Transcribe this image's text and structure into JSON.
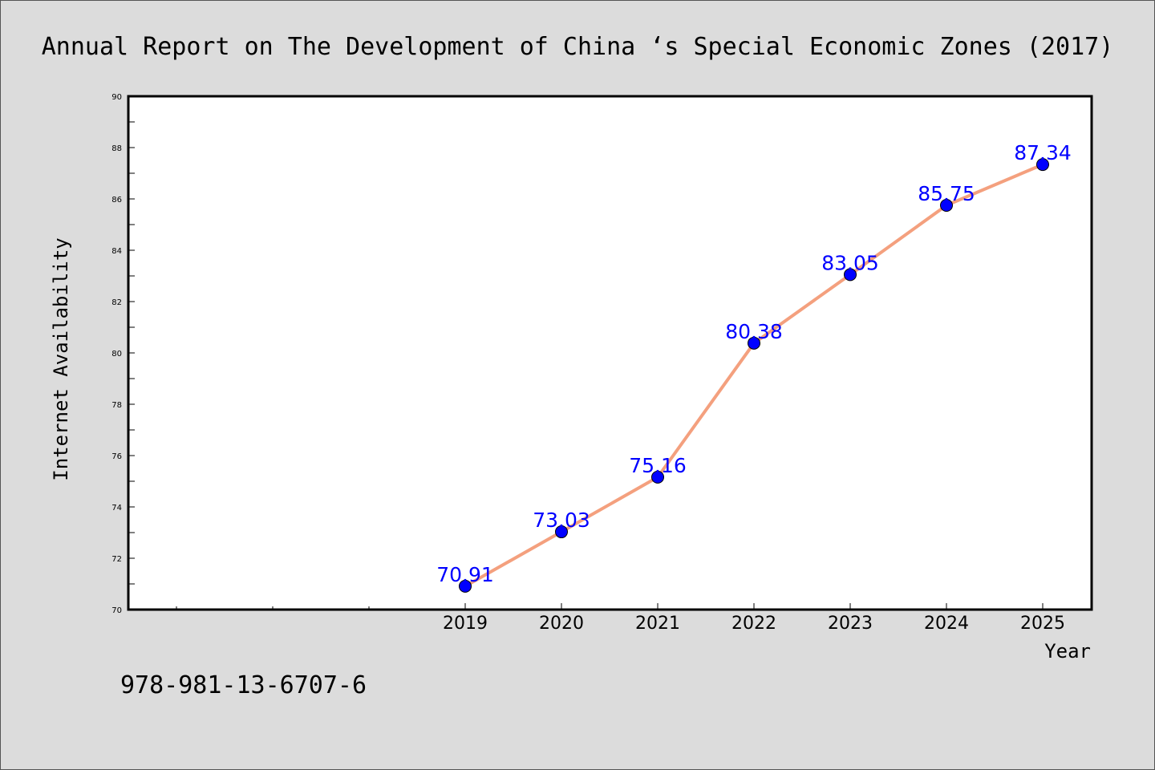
{
  "chart_data": {
    "type": "line",
    "title": "Annual Report on The Development of China ‘s Special Economic Zones (2017)",
    "xlabel": "Year",
    "ylabel": "Internet Availability",
    "x": [
      "2019",
      "2020",
      "2021",
      "2022",
      "2023",
      "2024",
      "2025"
    ],
    "values": [
      70.91,
      73.03,
      75.16,
      80.38,
      83.05,
      85.75,
      87.34
    ],
    "data_labels": [
      "70.91",
      "73.03",
      "75.16",
      "80.38",
      "83.05",
      "85.75",
      "87.34"
    ],
    "ylim": [
      70,
      90
    ],
    "yticks": [
      "70",
      "72",
      "74",
      "76",
      "78",
      "80",
      "82",
      "84",
      "86",
      "88",
      "90"
    ],
    "grid": false,
    "line_color": "#f4a07e",
    "marker_color": "#0000ff",
    "label_color": "#0000ff",
    "background": "#dcdcdc",
    "plot_background": "#ffffff"
  },
  "footer": {
    "isbn": "978-981-13-6707-6"
  }
}
